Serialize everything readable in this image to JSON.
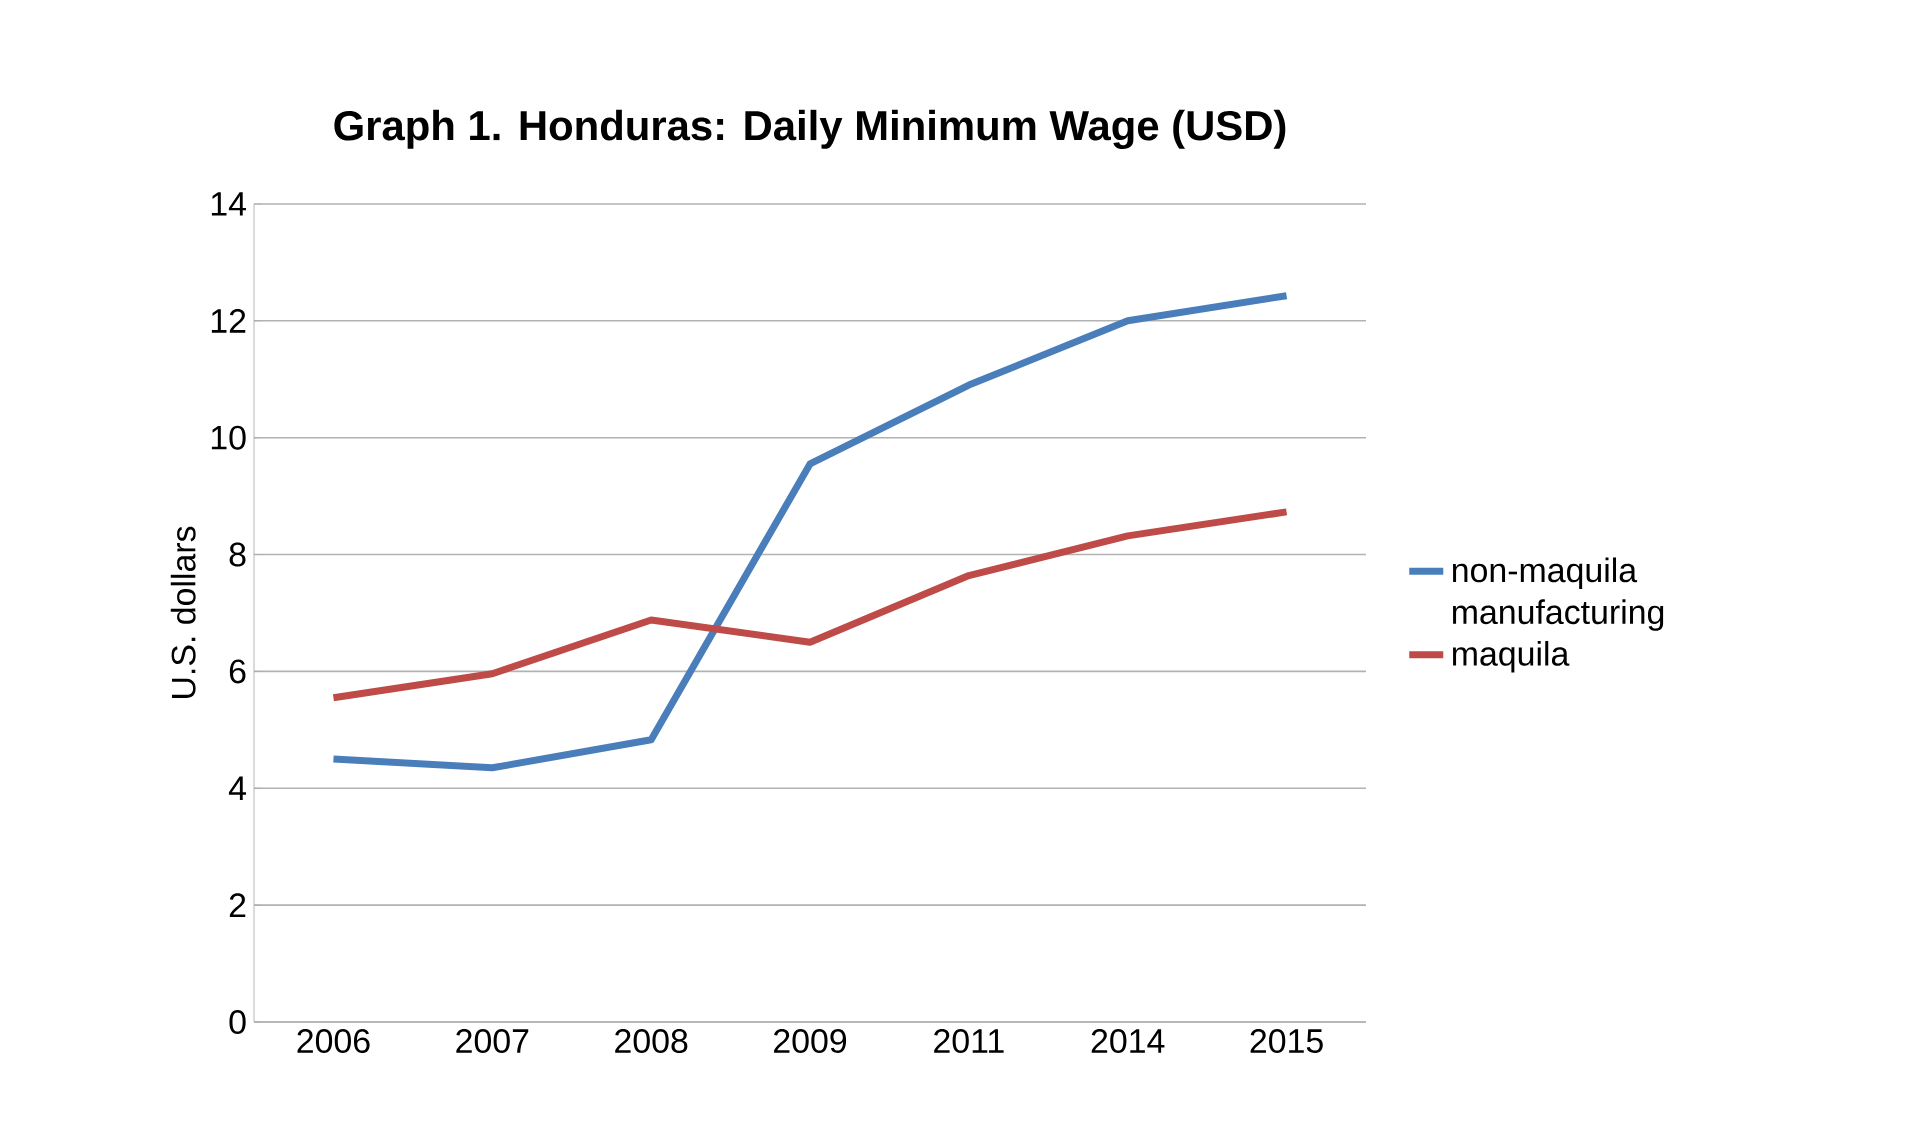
{
  "chart_data": {
    "type": "line",
    "title": "Graph 1. Honduras: Daily Minimum Wage (USD)",
    "ylabel": "U.S. dollars",
    "categories": [
      "2006",
      "2007",
      "2008",
      "2009",
      "2011",
      "2014",
      "2015"
    ],
    "series": [
      {
        "name": "non-maquila manufacturing",
        "color": "#4a7ebb",
        "values": [
          4.5,
          4.35,
          4.83,
          9.55,
          10.9,
          12.0,
          12.43
        ]
      },
      {
        "name": "maquila",
        "color": "#be4b48",
        "values": [
          5.55,
          5.96,
          6.88,
          6.5,
          7.64,
          8.32,
          8.73
        ]
      }
    ],
    "ylim": [
      0,
      14
    ],
    "yticks": [
      0,
      2,
      4,
      6,
      8,
      10,
      12,
      14
    ],
    "grid": "y",
    "legend": "right",
    "marker": "none",
    "line_style": "solid"
  }
}
